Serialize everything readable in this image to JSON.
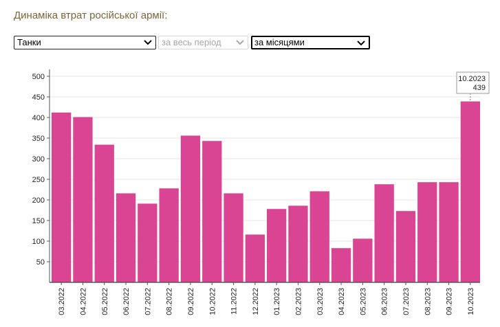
{
  "header": {
    "title": "Динаміка втрат російської армії:"
  },
  "controls": {
    "category": {
      "value": "Танки"
    },
    "period": {
      "value": "за весь період",
      "disabled": true
    },
    "grouping": {
      "value": "за місяцями"
    }
  },
  "chart_data": {
    "type": "bar",
    "categories": [
      "03.2022",
      "04.2022",
      "05.2022",
      "06.2022",
      "07.2022",
      "08.2022",
      "09.2022",
      "10.2022",
      "11.2022",
      "12.2022",
      "01.2023",
      "02.2023",
      "03.2023",
      "04.2023",
      "05.2023",
      "06.2023",
      "07.2023",
      "08.2023",
      "09.2023",
      "10.2023"
    ],
    "values": [
      412,
      401,
      334,
      216,
      191,
      228,
      356,
      343,
      216,
      116,
      178,
      186,
      221,
      83,
      106,
      238,
      173,
      243,
      243,
      439
    ],
    "yticks": [
      50,
      100,
      150,
      200,
      250,
      300,
      350,
      400,
      450,
      500
    ],
    "ylim": [
      0,
      500
    ],
    "grid": true,
    "bar_color": "#d94592",
    "tooltip": {
      "label": "10.2023",
      "value": "439"
    }
  }
}
